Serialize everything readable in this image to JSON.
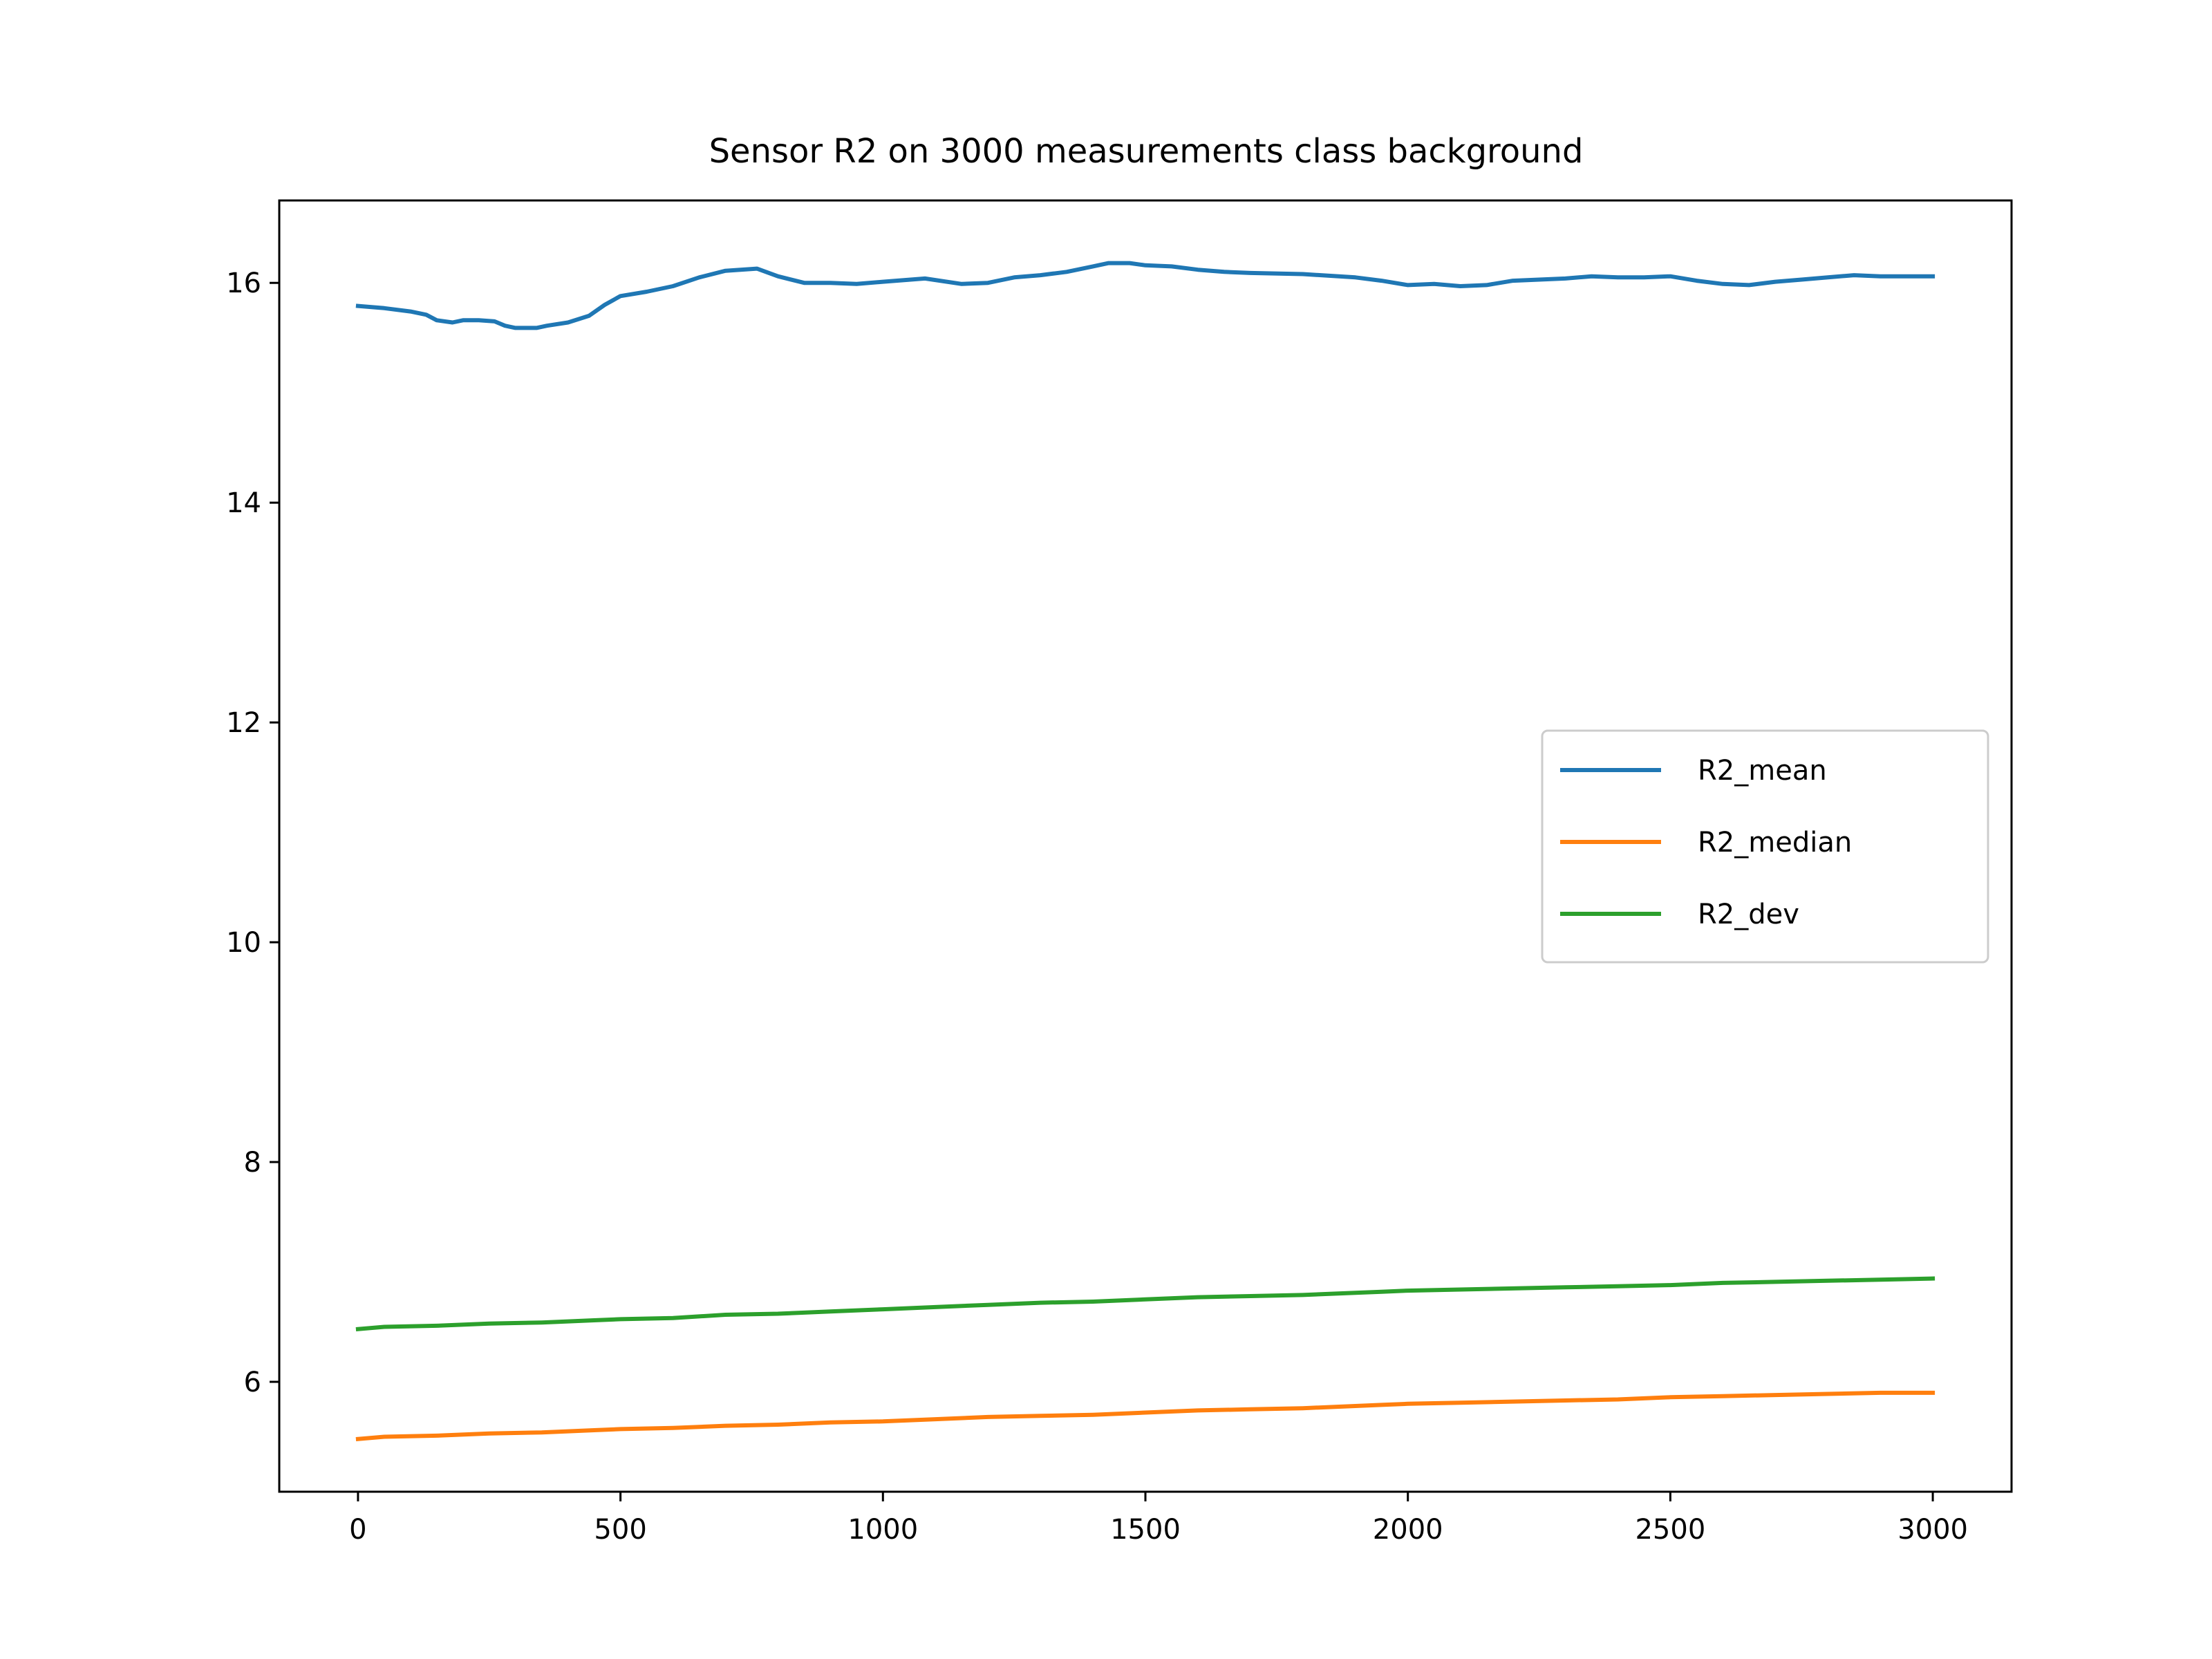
{
  "chart_data": {
    "type": "line",
    "title": "Sensor R2 on 3000 measurements class background",
    "xlabel": "",
    "ylabel": "",
    "xlim": [
      -150,
      3150
    ],
    "ylim": [
      5.0,
      16.75
    ],
    "xticks": [
      0,
      500,
      1000,
      1500,
      2000,
      2500,
      3000
    ],
    "yticks": [
      6,
      8,
      10,
      12,
      14,
      16
    ],
    "grid": false,
    "legend_position": "center-right",
    "series": [
      {
        "name": "R2_mean",
        "color": "#1f77b4",
        "x": [
          0,
          50,
          100,
          130,
          150,
          180,
          200,
          230,
          260,
          280,
          300,
          340,
          360,
          400,
          440,
          470,
          500,
          550,
          600,
          650,
          700,
          760,
          800,
          850,
          900,
          950,
          1000,
          1080,
          1150,
          1200,
          1250,
          1300,
          1350,
          1400,
          1430,
          1470,
          1500,
          1550,
          1600,
          1650,
          1700,
          1800,
          1900,
          1950,
          2000,
          2050,
          2100,
          2150,
          2200,
          2250,
          2300,
          2350,
          2400,
          2450,
          2500,
          2550,
          2600,
          2650,
          2700,
          2750,
          2800,
          2850,
          2900,
          2950,
          3000
        ],
        "values": [
          15.79,
          15.77,
          15.74,
          15.71,
          15.66,
          15.64,
          15.66,
          15.66,
          15.65,
          15.61,
          15.59,
          15.59,
          15.61,
          15.64,
          15.7,
          15.8,
          15.88,
          15.92,
          15.97,
          16.05,
          16.11,
          16.13,
          16.06,
          16.0,
          16.0,
          15.99,
          16.01,
          16.04,
          15.99,
          16.0,
          16.05,
          16.07,
          16.1,
          16.15,
          16.18,
          16.18,
          16.16,
          16.15,
          16.12,
          16.1,
          16.09,
          16.08,
          16.05,
          16.02,
          15.98,
          15.99,
          15.97,
          15.98,
          16.02,
          16.03,
          16.04,
          16.06,
          16.05,
          16.05,
          16.06,
          16.02,
          15.99,
          15.98,
          16.01,
          16.03,
          16.05,
          16.07,
          16.06,
          16.06,
          16.06
        ]
      },
      {
        "name": "R2_median",
        "color": "#ff7f0e",
        "x": [
          0,
          50,
          150,
          250,
          350,
          450,
          500,
          600,
          700,
          800,
          900,
          1000,
          1100,
          1200,
          1300,
          1400,
          1500,
          1600,
          1700,
          1800,
          1900,
          1950,
          2000,
          2100,
          2200,
          2300,
          2400,
          2500,
          2600,
          2700,
          2800,
          2900,
          3000
        ],
        "values": [
          5.48,
          5.5,
          5.51,
          5.53,
          5.54,
          5.56,
          5.57,
          5.58,
          5.6,
          5.61,
          5.63,
          5.64,
          5.66,
          5.68,
          5.69,
          5.7,
          5.72,
          5.74,
          5.75,
          5.76,
          5.78,
          5.79,
          5.8,
          5.81,
          5.82,
          5.83,
          5.84,
          5.86,
          5.87,
          5.88,
          5.89,
          5.9,
          5.9
        ]
      },
      {
        "name": "R2_dev",
        "color": "#2ca02c",
        "x": [
          0,
          50,
          150,
          250,
          350,
          450,
          500,
          600,
          700,
          800,
          900,
          1000,
          1100,
          1200,
          1300,
          1400,
          1500,
          1600,
          1700,
          1800,
          1900,
          1950,
          2000,
          2100,
          2200,
          2300,
          2400,
          2500,
          2600,
          2700,
          2800,
          2900,
          3000
        ],
        "values": [
          6.48,
          6.5,
          6.51,
          6.53,
          6.54,
          6.56,
          6.57,
          6.58,
          6.61,
          6.62,
          6.64,
          6.66,
          6.68,
          6.7,
          6.72,
          6.73,
          6.75,
          6.77,
          6.78,
          6.79,
          6.81,
          6.82,
          6.83,
          6.84,
          6.85,
          6.86,
          6.87,
          6.88,
          6.9,
          6.91,
          6.92,
          6.93,
          6.94
        ]
      }
    ]
  }
}
